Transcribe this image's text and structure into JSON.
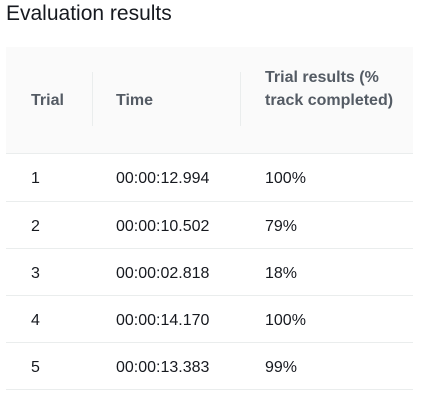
{
  "page": {
    "title": "Evaluation results"
  },
  "table": {
    "headers": {
      "trial": "Trial",
      "time": "Time",
      "results": "Trial results (% track completed)"
    },
    "rows": [
      {
        "trial": "1",
        "time": "00:00:12.994",
        "result": "100%"
      },
      {
        "trial": "2",
        "time": "00:00:10.502",
        "result": "79%"
      },
      {
        "trial": "3",
        "time": "00:00:02.818",
        "result": "18%"
      },
      {
        "trial": "4",
        "time": "00:00:14.170",
        "result": "100%"
      },
      {
        "trial": "5",
        "time": "00:00:13.383",
        "result": "99%"
      }
    ]
  },
  "colors": {
    "header_bg": "#fafafa",
    "header_text": "#545b64",
    "body_text": "#16191f",
    "divider": "#eaeded"
  }
}
